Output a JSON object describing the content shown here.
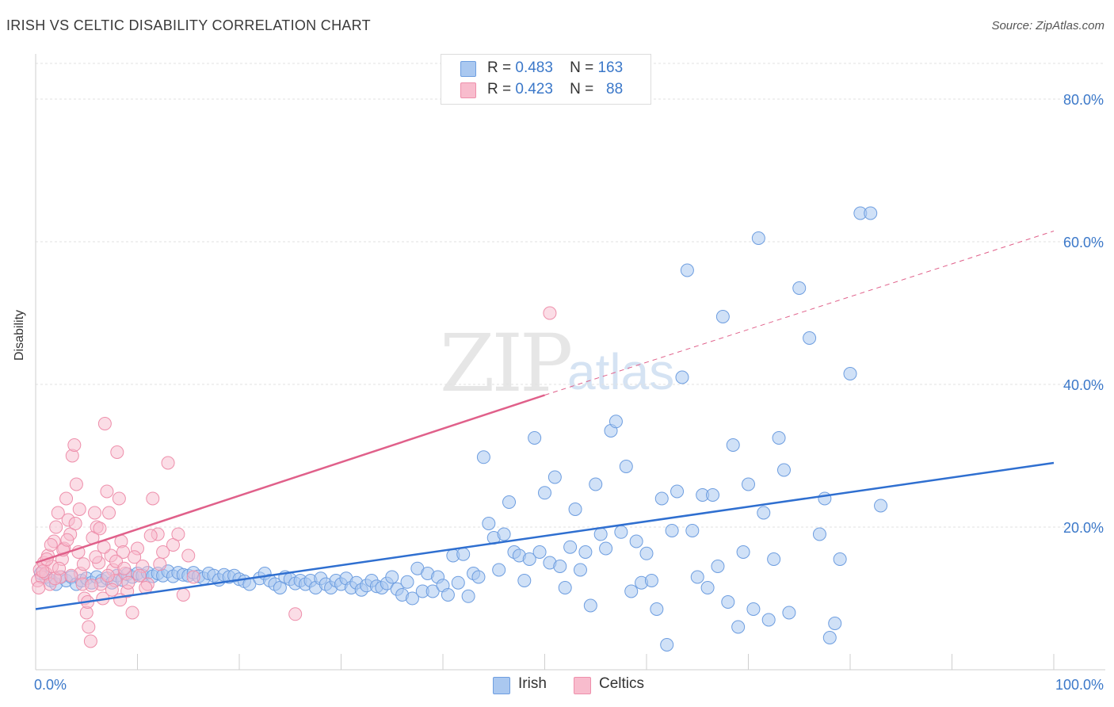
{
  "header": {
    "title": "IRISH VS CELTIC DISABILITY CORRELATION CHART",
    "source": "Source: ZipAtlas.com"
  },
  "watermark": {
    "zip": "ZIP",
    "atlas": "atlas"
  },
  "legend": {
    "rows": [
      {
        "r_label": "R =",
        "r_value": "0.483",
        "n_label": "N =",
        "n_value": "163"
      },
      {
        "r_label": "R =",
        "r_value": "0.423",
        "n_label": "N =",
        "n_value": "88"
      }
    ]
  },
  "bottom_legend": {
    "irish": "Irish",
    "celtics": "Celtics"
  },
  "colors": {
    "irish_fill": "#aac8f0",
    "irish_stroke": "#6e9ee0",
    "irish_line": "#2f6fd0",
    "celtics_fill": "#f8bccd",
    "celtics_stroke": "#ee8fab",
    "celtics_line": "#e0608a",
    "axis_label": "#3b78c9"
  },
  "chart_data": {
    "type": "scatter",
    "title": "IRISH VS CELTIC DISABILITY CORRELATION CHART",
    "xlabel": "",
    "ylabel": "Disability",
    "xlim": [
      0,
      100
    ],
    "ylim": [
      0,
      85
    ],
    "x_tick_labels": [
      "0.0%",
      "100.0%"
    ],
    "y_ticks": [
      20,
      40,
      60,
      80
    ],
    "y_tick_labels": [
      "20.0%",
      "40.0%",
      "60.0%",
      "80.0%"
    ],
    "grid": true,
    "legend_placement": "top-center",
    "series": [
      {
        "name": "Irish",
        "r": 0.483,
        "n": 163,
        "trend": {
          "x": [
            0,
            100
          ],
          "y": [
            8.5,
            29.0
          ]
        },
        "points": [
          [
            0.5,
            13.5
          ],
          [
            1,
            13
          ],
          [
            1.5,
            12.5
          ],
          [
            2,
            12
          ],
          [
            2.5,
            13
          ],
          [
            3,
            12.5
          ],
          [
            3.5,
            13
          ],
          [
            4,
            12
          ],
          [
            4.5,
            12.5
          ],
          [
            5,
            12.8
          ],
          [
            5.5,
            12.2
          ],
          [
            6,
            13
          ],
          [
            6.5,
            12.5
          ],
          [
            7,
            12.8
          ],
          [
            7.5,
            12.2
          ],
          [
            8,
            13.2
          ],
          [
            8.5,
            12.6
          ],
          [
            9,
            13.4
          ],
          [
            9.5,
            13
          ],
          [
            10,
            13.5
          ],
          [
            10.5,
            13.2
          ],
          [
            11,
            13.6
          ],
          [
            11.5,
            13.1
          ],
          [
            12,
            13.5
          ],
          [
            12.5,
            13.2
          ],
          [
            13,
            13.8
          ],
          [
            13.5,
            13.1
          ],
          [
            14,
            13.6
          ],
          [
            14.5,
            13.3
          ],
          [
            15,
            13.2
          ],
          [
            15.5,
            13.6
          ],
          [
            16,
            13.1
          ],
          [
            16.5,
            12.8
          ],
          [
            17,
            13.5
          ],
          [
            17.5,
            13.2
          ],
          [
            18,
            12.6
          ],
          [
            18.5,
            13.3
          ],
          [
            19,
            13
          ],
          [
            19.5,
            13.2
          ],
          [
            20,
            12.7
          ],
          [
            20.5,
            12.4
          ],
          [
            21,
            12
          ],
          [
            22,
            12.8
          ],
          [
            22.5,
            13.5
          ],
          [
            23,
            12.5
          ],
          [
            23.5,
            12
          ],
          [
            24,
            11.5
          ],
          [
            24.5,
            13
          ],
          [
            25,
            12.7
          ],
          [
            25.5,
            12.1
          ],
          [
            26,
            12.5
          ],
          [
            26.5,
            12
          ],
          [
            27,
            12.5
          ],
          [
            27.5,
            11.5
          ],
          [
            28,
            12.8
          ],
          [
            28.5,
            12
          ],
          [
            29,
            11.5
          ],
          [
            29.5,
            12.5
          ],
          [
            30,
            12
          ],
          [
            30.5,
            12.8
          ],
          [
            31,
            11.5
          ],
          [
            31.5,
            12.2
          ],
          [
            32,
            11.2
          ],
          [
            32.5,
            11.8
          ],
          [
            33,
            12.5
          ],
          [
            33.5,
            11.7
          ],
          [
            34,
            11.5
          ],
          [
            34.5,
            12.1
          ],
          [
            35,
            13
          ],
          [
            35.5,
            11.3
          ],
          [
            36,
            10.5
          ],
          [
            36.5,
            12.3
          ],
          [
            37,
            10
          ],
          [
            37.5,
            14.2
          ],
          [
            38,
            11
          ],
          [
            38.5,
            13.5
          ],
          [
            39,
            11
          ],
          [
            39.5,
            13
          ],
          [
            40,
            11.8
          ],
          [
            40.5,
            10.5
          ],
          [
            41,
            16
          ],
          [
            41.5,
            12.2
          ],
          [
            42,
            16.2
          ],
          [
            42.5,
            10.3
          ],
          [
            43,
            13.5
          ],
          [
            43.5,
            13
          ],
          [
            44,
            29.8
          ],
          [
            44.5,
            20.5
          ],
          [
            45,
            18.5
          ],
          [
            45.5,
            14
          ],
          [
            46,
            19
          ],
          [
            46.5,
            23.5
          ],
          [
            47,
            16.5
          ],
          [
            47.5,
            16
          ],
          [
            48,
            12.5
          ],
          [
            48.5,
            15.5
          ],
          [
            49,
            32.5
          ],
          [
            49.5,
            16.5
          ],
          [
            50,
            24.8
          ],
          [
            50.5,
            15
          ],
          [
            51,
            27
          ],
          [
            51.5,
            14.5
          ],
          [
            52,
            11.5
          ],
          [
            52.5,
            17.2
          ],
          [
            53,
            22.5
          ],
          [
            53.5,
            14
          ],
          [
            54,
            16.5
          ],
          [
            54.5,
            9
          ],
          [
            55,
            26
          ],
          [
            55.5,
            19
          ],
          [
            56,
            17
          ],
          [
            56.5,
            33.5
          ],
          [
            57,
            34.8
          ],
          [
            57.5,
            19.3
          ],
          [
            58,
            28.5
          ],
          [
            58.5,
            11
          ],
          [
            59,
            18
          ],
          [
            59.5,
            12.2
          ],
          [
            60,
            16.3
          ],
          [
            60.5,
            12.5
          ],
          [
            61,
            8.5
          ],
          [
            61.5,
            24
          ],
          [
            62,
            3.5
          ],
          [
            62.5,
            19.5
          ],
          [
            63,
            25
          ],
          [
            63.5,
            41
          ],
          [
            64,
            56
          ],
          [
            64.5,
            19.5
          ],
          [
            65,
            13
          ],
          [
            65.5,
            24.5
          ],
          [
            66,
            11.5
          ],
          [
            66.5,
            24.5
          ],
          [
            67,
            14.5
          ],
          [
            67.5,
            49.5
          ],
          [
            68,
            9.5
          ],
          [
            68.5,
            31.5
          ],
          [
            69,
            6
          ],
          [
            69.5,
            16.5
          ],
          [
            70,
            26
          ],
          [
            70.5,
            8.5
          ],
          [
            71,
            60.5
          ],
          [
            71.5,
            22
          ],
          [
            72,
            7
          ],
          [
            72.5,
            15.5
          ],
          [
            73,
            32.5
          ],
          [
            73.5,
            28
          ],
          [
            74,
            8
          ],
          [
            75,
            53.5
          ],
          [
            76,
            46.5
          ],
          [
            77,
            19
          ],
          [
            77.5,
            24
          ],
          [
            78,
            4.5
          ],
          [
            78.5,
            6.5
          ],
          [
            79,
            15.5
          ],
          [
            80,
            41.5
          ],
          [
            81,
            64
          ],
          [
            82,
            64
          ],
          [
            83,
            23
          ]
        ]
      },
      {
        "name": "Celtics",
        "r": 0.423,
        "n": 88,
        "trend": {
          "x": [
            0,
            50
          ],
          "y": [
            15.0,
            38.5
          ]
        },
        "trend_dashed": {
          "x": [
            50,
            100
          ],
          "y": [
            38.5,
            61.5
          ]
        },
        "points": [
          [
            0.2,
            12.5
          ],
          [
            0.4,
            14
          ],
          [
            0.6,
            13
          ],
          [
            0.8,
            15
          ],
          [
            1,
            13.5
          ],
          [
            1.2,
            16
          ],
          [
            1.4,
            12
          ],
          [
            1.6,
            14.5
          ],
          [
            1.8,
            18
          ],
          [
            2,
            20
          ],
          [
            2.2,
            22
          ],
          [
            2.4,
            13
          ],
          [
            2.6,
            15.5
          ],
          [
            2.8,
            17
          ],
          [
            3,
            24
          ],
          [
            3.2,
            21
          ],
          [
            3.4,
            19
          ],
          [
            3.6,
            30
          ],
          [
            3.8,
            31.5
          ],
          [
            4,
            26
          ],
          [
            4.2,
            16.5
          ],
          [
            4.4,
            13.5
          ],
          [
            4.6,
            12
          ],
          [
            4.8,
            10
          ],
          [
            5,
            8
          ],
          [
            5.2,
            6
          ],
          [
            5.4,
            4
          ],
          [
            5.6,
            18.5
          ],
          [
            5.8,
            22
          ],
          [
            6,
            20
          ],
          [
            6.2,
            15
          ],
          [
            6.4,
            12
          ],
          [
            6.6,
            10
          ],
          [
            6.8,
            34.5
          ],
          [
            7,
            25
          ],
          [
            7.2,
            22
          ],
          [
            7.4,
            16
          ],
          [
            7.6,
            14
          ],
          [
            7.8,
            12.5
          ],
          [
            8,
            30.5
          ],
          [
            8.2,
            24
          ],
          [
            8.4,
            18
          ],
          [
            8.6,
            16.5
          ],
          [
            8.8,
            13.5
          ],
          [
            9,
            11
          ],
          [
            9.5,
            8
          ],
          [
            10,
            17
          ],
          [
            10.5,
            14.5
          ],
          [
            11,
            12
          ],
          [
            11.5,
            24
          ],
          [
            12,
            19
          ],
          [
            12.5,
            16.5
          ],
          [
            13,
            29
          ],
          [
            13.5,
            17.5
          ],
          [
            14,
            19
          ],
          [
            14.5,
            10.5
          ],
          [
            15,
            16
          ],
          [
            15.5,
            13
          ],
          [
            25.5,
            7.8
          ],
          [
            50.5,
            50
          ],
          [
            0.3,
            11.5
          ],
          [
            0.7,
            13.8
          ],
          [
            1.1,
            15.5
          ],
          [
            1.5,
            17.5
          ],
          [
            1.9,
            12.8
          ],
          [
            2.3,
            14.2
          ],
          [
            2.7,
            16.8
          ],
          [
            3.1,
            18.2
          ],
          [
            3.5,
            13.2
          ],
          [
            3.9,
            20.5
          ],
          [
            4.3,
            22.5
          ],
          [
            4.7,
            14.8
          ],
          [
            5.1,
            9.5
          ],
          [
            5.5,
            11.8
          ],
          [
            5.9,
            15.8
          ],
          [
            6.3,
            19.8
          ],
          [
            6.7,
            17.2
          ],
          [
            7.1,
            13.2
          ],
          [
            7.5,
            11.2
          ],
          [
            7.9,
            15.2
          ],
          [
            8.3,
            9.8
          ],
          [
            8.7,
            14.2
          ],
          [
            9.1,
            12.2
          ],
          [
            9.7,
            15.8
          ],
          [
            10.2,
            13.2
          ],
          [
            10.8,
            11.5
          ],
          [
            11.3,
            18.8
          ],
          [
            12.2,
            14.8
          ]
        ]
      }
    ]
  }
}
